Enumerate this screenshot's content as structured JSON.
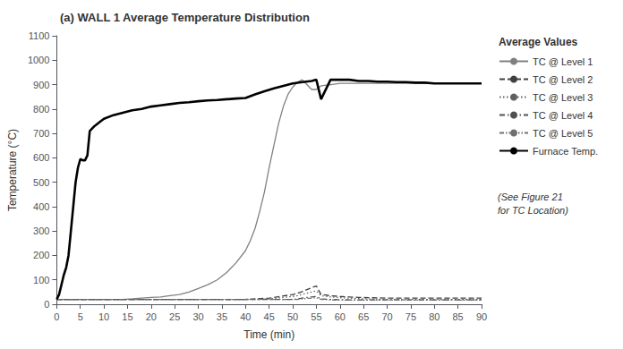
{
  "chart_data": {
    "type": "line",
    "title": "(a) WALL 1 Average Temperature Distribution",
    "xlabel": "Time (min)",
    "ylabel": "Temperature (°C)",
    "xlim": [
      0,
      90
    ],
    "ylim": [
      0,
      1100
    ],
    "xticks": [
      0,
      5,
      10,
      15,
      20,
      25,
      30,
      35,
      40,
      45,
      50,
      55,
      60,
      65,
      70,
      75,
      80,
      85,
      90
    ],
    "yticks": [
      0,
      100,
      200,
      300,
      400,
      500,
      600,
      700,
      800,
      900,
      1000,
      1100
    ],
    "grid": false,
    "legend": "right",
    "legend_title": "Average Values",
    "annotations": [
      "(See Figure 21\nfor TC Location)"
    ],
    "series": [
      {
        "name": "TC @ Level 1",
        "color": "#808080",
        "line_style": "solid",
        "x": [
          0,
          2,
          4,
          6,
          8,
          10,
          12,
          14,
          16,
          18,
          20,
          22,
          24,
          26,
          28,
          30,
          32,
          34,
          36,
          38,
          40,
          41,
          42,
          43,
          44,
          45,
          46,
          47,
          48,
          49,
          50,
          51,
          52,
          53,
          54,
          55,
          56,
          58,
          60,
          62,
          64,
          66,
          68,
          70,
          72,
          74,
          76,
          78,
          80,
          82,
          84,
          86,
          88,
          90
        ],
        "values": [
          20,
          20,
          20,
          20,
          20,
          20,
          20,
          20,
          22,
          25,
          28,
          30,
          35,
          40,
          50,
          65,
          80,
          100,
          130,
          170,
          220,
          260,
          310,
          380,
          460,
          560,
          650,
          740,
          810,
          860,
          890,
          910,
          920,
          900,
          880,
          880,
          895,
          900,
          905,
          905,
          905,
          905,
          905,
          905,
          905,
          905,
          905,
          905,
          905,
          905,
          905,
          905,
          905,
          905
        ]
      },
      {
        "name": "TC @ Level 2",
        "color": "#404040",
        "line_style": "dashed",
        "x": [
          0,
          5,
          10,
          15,
          20,
          25,
          30,
          35,
          40,
          45,
          50,
          51,
          52,
          53,
          54,
          55,
          56,
          58,
          60,
          62,
          64,
          66,
          68,
          70,
          72,
          74,
          76,
          78,
          80,
          82,
          84,
          86,
          88,
          90
        ],
        "values": [
          20,
          20,
          20,
          20,
          20,
          20,
          20,
          20,
          20,
          25,
          40,
          45,
          52,
          60,
          68,
          75,
          40,
          35,
          32,
          30,
          28,
          27,
          26,
          25,
          25,
          25,
          25,
          25,
          25,
          25,
          25,
          25,
          25,
          25
        ]
      },
      {
        "name": "TC @ Level 3",
        "color": "#606060",
        "line_style": "dotted",
        "x": [
          0,
          5,
          10,
          15,
          20,
          25,
          30,
          35,
          40,
          45,
          50,
          51,
          52,
          53,
          54,
          55,
          56,
          58,
          60,
          62,
          64,
          66,
          68,
          70,
          72,
          74,
          76,
          78,
          80,
          82,
          84,
          86,
          88,
          90
        ],
        "values": [
          20,
          20,
          20,
          20,
          20,
          20,
          20,
          20,
          20,
          22,
          32,
          35,
          40,
          45,
          50,
          55,
          35,
          30,
          27,
          25,
          23,
          22,
          21,
          20,
          20,
          20,
          20,
          20,
          20,
          20,
          20,
          20,
          20,
          20
        ]
      },
      {
        "name": "TC @ Level 4",
        "color": "#505050",
        "line_style": "dashdot",
        "x": [
          0,
          5,
          10,
          15,
          20,
          25,
          30,
          35,
          40,
          45,
          50,
          51,
          52,
          53,
          54,
          55,
          56,
          58,
          60,
          62,
          64,
          66,
          68,
          70,
          72,
          74,
          76,
          78,
          80,
          82,
          84,
          86,
          88,
          90
        ],
        "values": [
          20,
          20,
          20,
          20,
          20,
          20,
          20,
          20,
          20,
          20,
          20,
          22,
          25,
          28,
          30,
          32,
          22,
          20,
          19,
          18,
          18,
          18,
          18,
          18,
          18,
          18,
          18,
          18,
          18,
          18,
          18,
          18,
          18,
          18
        ]
      },
      {
        "name": "TC @ Level 5",
        "color": "#707070",
        "line_style": "dashdotdot",
        "x": [
          0,
          5,
          10,
          15,
          20,
          25,
          30,
          35,
          40,
          45,
          50,
          51,
          52,
          53,
          54,
          55,
          56,
          58,
          60,
          62,
          64,
          66,
          68,
          70,
          72,
          74,
          76,
          78,
          80,
          82,
          84,
          86,
          88,
          90
        ],
        "values": [
          20,
          20,
          20,
          20,
          20,
          20,
          20,
          20,
          20,
          20,
          20,
          20,
          22,
          24,
          25,
          27,
          20,
          18,
          17,
          17,
          17,
          17,
          17,
          17,
          17,
          17,
          17,
          17,
          17,
          17,
          17,
          17,
          17,
          17
        ]
      },
      {
        "name": "Furnace Temp.",
        "color": "#000000",
        "line_style": "bold",
        "x": [
          0,
          0.5,
          1,
          1.5,
          2,
          2.5,
          3,
          3.5,
          4,
          4.5,
          5,
          5.5,
          6,
          6.5,
          7,
          8,
          9,
          10,
          12,
          14,
          16,
          18,
          20,
          22,
          24,
          26,
          28,
          30,
          32,
          34,
          36,
          38,
          40,
          42,
          44,
          46,
          48,
          50,
          52,
          54,
          55,
          56,
          58,
          60,
          62,
          64,
          66,
          68,
          70,
          72,
          74,
          76,
          78,
          80,
          82,
          84,
          86,
          88,
          90
        ],
        "values": [
          20,
          40,
          80,
          120,
          150,
          200,
          300,
          400,
          500,
          560,
          595,
          590,
          590,
          610,
          710,
          730,
          745,
          760,
          775,
          785,
          795,
          800,
          810,
          815,
          820,
          825,
          828,
          832,
          835,
          837,
          840,
          843,
          845,
          860,
          873,
          885,
          895,
          905,
          910,
          915,
          920,
          840,
          920,
          920,
          920,
          915,
          915,
          912,
          912,
          910,
          910,
          908,
          908,
          905,
          905,
          905,
          905,
          905,
          905
        ]
      }
    ]
  }
}
